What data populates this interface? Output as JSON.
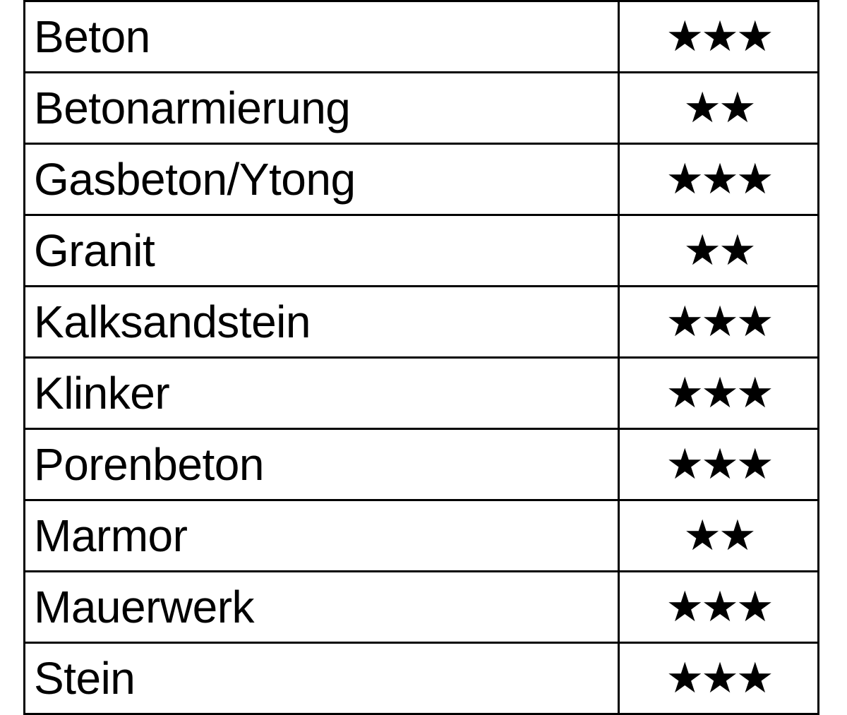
{
  "rows": [
    {
      "material": "Beton",
      "stars": 3,
      "stars_text": "★★★"
    },
    {
      "material": "Betonarmierung",
      "stars": 2,
      "stars_text": "★★"
    },
    {
      "material": "Gasbeton/Ytong",
      "stars": 3,
      "stars_text": "★★★"
    },
    {
      "material": "Granit",
      "stars": 2,
      "stars_text": "★★"
    },
    {
      "material": "Kalksandstein",
      "stars": 3,
      "stars_text": "★★★"
    },
    {
      "material": "Klinker",
      "stars": 3,
      "stars_text": "★★★"
    },
    {
      "material": "Porenbeton",
      "stars": 3,
      "stars_text": "★★★"
    },
    {
      "material": "Marmor",
      "stars": 2,
      "stars_text": "★★"
    },
    {
      "material": "Mauerwerk",
      "stars": 3,
      "stars_text": "★★★"
    },
    {
      "material": "Stein",
      "stars": 3,
      "stars_text": "★★★"
    }
  ]
}
